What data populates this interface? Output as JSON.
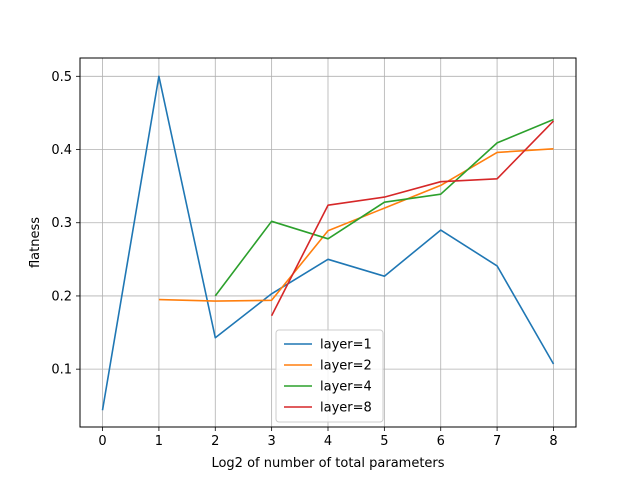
{
  "chart_data": {
    "type": "line",
    "title": "",
    "xlabel": "Log2 of number of total parameters",
    "ylabel": "flatness",
    "xlim": [
      -0.4,
      8.4
    ],
    "ylim": [
      0.021,
      0.525
    ],
    "x_ticks": [
      0,
      1,
      2,
      3,
      4,
      5,
      6,
      7,
      8
    ],
    "x_tick_labels": [
      "0",
      "1",
      "2",
      "3",
      "4",
      "5",
      "6",
      "7",
      "8"
    ],
    "y_ticks": [
      0.1,
      0.2,
      0.3,
      0.4,
      0.5
    ],
    "y_tick_labels": [
      "0.1",
      "0.2",
      "0.3",
      "0.4",
      "0.5"
    ],
    "grid": true,
    "legend_position": "lower-center",
    "series": [
      {
        "name": "layer=1",
        "color": "#1f77b4",
        "x": [
          0,
          1,
          2,
          3,
          4,
          5,
          6,
          7,
          8
        ],
        "values": [
          0.044,
          0.5,
          0.143,
          0.203,
          0.25,
          0.227,
          0.29,
          0.241,
          0.107
        ]
      },
      {
        "name": "layer=2",
        "color": "#ff7f0e",
        "x": [
          1,
          2,
          3,
          4,
          5,
          6,
          7,
          8
        ],
        "values": [
          0.195,
          0.193,
          0.194,
          0.289,
          0.32,
          0.351,
          0.396,
          0.401
        ]
      },
      {
        "name": "layer=4",
        "color": "#2ca02c",
        "x": [
          2,
          3,
          4,
          5,
          6,
          7,
          8
        ],
        "values": [
          0.2,
          0.302,
          0.278,
          0.328,
          0.339,
          0.409,
          0.441
        ]
      },
      {
        "name": "layer=8",
        "color": "#d62728",
        "x": [
          3,
          4,
          5,
          6,
          7,
          8
        ],
        "values": [
          0.173,
          0.324,
          0.335,
          0.356,
          0.36,
          0.439
        ]
      }
    ]
  }
}
